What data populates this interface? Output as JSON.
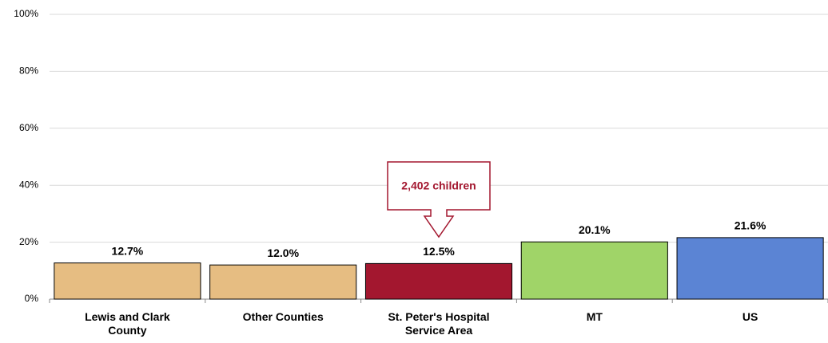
{
  "chart_data": {
    "type": "bar",
    "categories": [
      "Lewis and Clark County",
      "Other Counties",
      "St. Peter's Hospital Service Area",
      "MT",
      "US"
    ],
    "values": [
      12.7,
      12.0,
      12.5,
      20.1,
      21.6
    ],
    "value_labels": [
      "12.7%",
      "12.0%",
      "12.5%",
      "20.1%",
      "21.6%"
    ],
    "colors": [
      "#e6bd82",
      "#e6bd82",
      "#a3172f",
      "#a0d468",
      "#5b84d4"
    ],
    "ylim": [
      0,
      100
    ],
    "yticks": [
      {
        "value": 0,
        "label": "0%"
      },
      {
        "value": 20,
        "label": "20%"
      },
      {
        "value": 40,
        "label": "40%"
      },
      {
        "value": 60,
        "label": "60%"
      },
      {
        "value": 80,
        "label": "80%"
      },
      {
        "value": 100,
        "label": "100%"
      }
    ],
    "grid": true,
    "annotation": "2,402 children"
  }
}
